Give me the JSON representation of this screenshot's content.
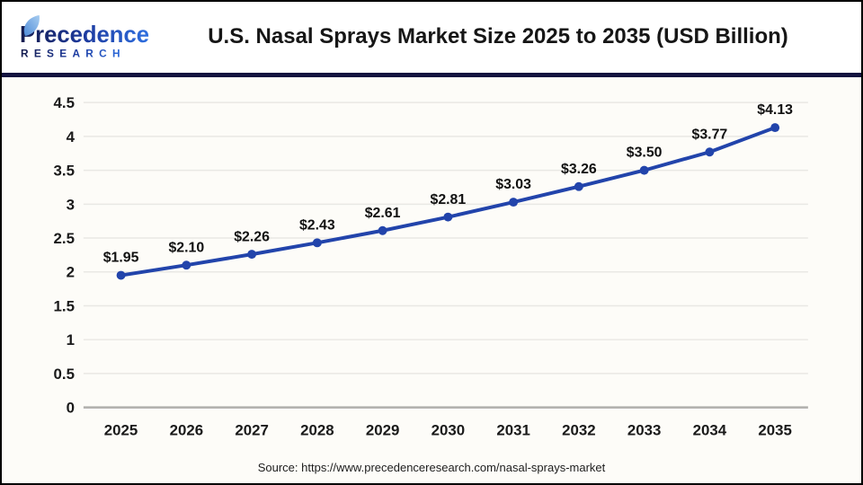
{
  "header": {
    "title": "U.S. Nasal Sprays Market Size 2025 to 2035 (USD Billion)",
    "logo": {
      "name": "Precedence",
      "sub": "RESEARCH"
    }
  },
  "footer": {
    "source": "Source: https://www.precedenceresearch.com/nasal-sprays-market"
  },
  "colors": {
    "line": "#2244ab",
    "gridline": "#e9e8e4",
    "axis_line": "#b0afac",
    "divider_navy": "#12123f",
    "logo_navy": "#141b4d",
    "logo_blue": "#2e6fe0",
    "leaf_blue": "#a8cdf0",
    "chart_bg": "#fdfcf8",
    "label_text": "#1a1a1a"
  },
  "chart_data": {
    "type": "line",
    "title": "U.S. Nasal Sprays Market Size 2025 to 2035 (USD Billion)",
    "x": [
      "2025",
      "2026",
      "2027",
      "2028",
      "2029",
      "2030",
      "2031",
      "2032",
      "2033",
      "2034",
      "2035"
    ],
    "series": [
      {
        "name": "U.S. Nasal Sprays Market Size (USD Billion)",
        "values": [
          1.95,
          2.1,
          2.26,
          2.43,
          2.61,
          2.81,
          3.03,
          3.26,
          3.5,
          3.77,
          4.13
        ]
      }
    ],
    "point_labels": [
      "$1.95",
      "$2.10",
      "$2.26",
      "$2.43",
      "$2.61",
      "$2.81",
      "$3.03",
      "$3.26",
      "$3.50",
      "$3.77",
      "$4.13"
    ],
    "xlabel": "",
    "ylabel": "",
    "ylim": [
      0,
      4.5
    ],
    "ytick_step": 0.5,
    "grid": true,
    "legend_position": "none"
  }
}
